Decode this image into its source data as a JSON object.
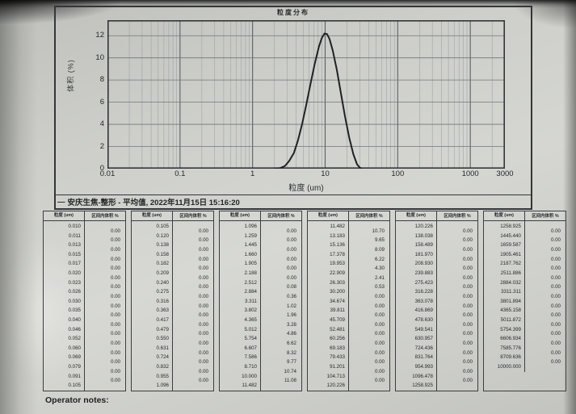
{
  "colors": {
    "page": "#d5d6d1",
    "ink": "#25272b",
    "grid_minor": "#9aa0a6",
    "grid_major": "#5a6066",
    "curve": "#1e2125"
  },
  "chart": {
    "title": "粒度分布",
    "ylabel": "体积 (%)",
    "xlabel": "粒度 (um)",
    "y_ticks": [
      0,
      2,
      4,
      6,
      8,
      10,
      12
    ],
    "x_ticks": [
      "0.01",
      "0.1",
      "1",
      "10",
      "100",
      "1000",
      "3000"
    ]
  },
  "caption": {
    "legend_dash": "—",
    "text": "安庆生焦-整形 - 平均值, 2022年11月15日 15:16:20"
  },
  "chart_data": {
    "type": "line",
    "title": "粒度分布",
    "xlabel": "粒度 (um)",
    "ylabel": "体积 (%)",
    "x_scale": "log",
    "xlim": [
      0.01,
      3000
    ],
    "ylim": [
      0,
      13.4
    ],
    "grid": true,
    "series": [
      {
        "name": "安庆生焦-整形 - 平均值",
        "x": [
          2.0,
          2.4,
          2.8,
          3.2,
          3.7,
          4.2,
          4.8,
          5.5,
          6.3,
          7.2,
          8.2,
          9.0,
          9.8,
          10.6,
          11.5,
          12.8,
          14.5,
          16.5,
          18.8,
          21.5,
          24.5,
          27.5,
          30.0,
          32.0
        ],
        "y": [
          0,
          0.05,
          0.25,
          0.7,
          1.4,
          2.5,
          4.0,
          5.8,
          7.7,
          9.5,
          11.0,
          11.8,
          12.2,
          12.15,
          11.7,
          10.6,
          8.9,
          6.8,
          4.7,
          2.8,
          1.3,
          0.4,
          0.1,
          0
        ]
      }
    ]
  },
  "tables": {
    "header_size": "粒度 (um)",
    "header_vol": "区间内体积 %",
    "groups": [
      {
        "sizes": [
          "0.010",
          "0.011",
          "0.013",
          "0.015",
          "0.017",
          "0.020",
          "0.023",
          "0.026",
          "0.030",
          "0.035",
          "0.040",
          "0.046",
          "0.052",
          "0.060",
          "0.069",
          "0.079",
          "0.091",
          "0.105"
        ],
        "values": [
          "0.00",
          "0.00",
          "0.00",
          "0.00",
          "0.00",
          "0.00",
          "0.00",
          "0.00",
          "0.00",
          "0.00",
          "0.00",
          "0.00",
          "0.00",
          "0.00",
          "0.00",
          "0.00",
          "0.00"
        ]
      },
      {
        "sizes": [
          "0.105",
          "0.120",
          "0.138",
          "0.158",
          "0.182",
          "0.209",
          "0.240",
          "0.275",
          "0.316",
          "0.363",
          "0.417",
          "0.479",
          "0.550",
          "0.631",
          "0.724",
          "0.832",
          "0.955",
          "1.096"
        ],
        "values": [
          "0.00",
          "0.00",
          "0.00",
          "0.00",
          "0.00",
          "0.00",
          "0.00",
          "0.00",
          "0.00",
          "0.00",
          "0.00",
          "0.00",
          "0.00",
          "0.00",
          "0.00",
          "0.00",
          "0.00"
        ]
      },
      {
        "sizes": [
          "1.096",
          "1.259",
          "1.445",
          "1.660",
          "1.905",
          "2.188",
          "2.512",
          "2.884",
          "3.311",
          "3.802",
          "4.365",
          "5.012",
          "5.754",
          "6.607",
          "7.586",
          "8.710",
          "10.000",
          "11.482"
        ],
        "values": [
          "0.00",
          "0.00",
          "0.00",
          "0.00",
          "0.00",
          "0.00",
          "0.08",
          "0.36",
          "1.02",
          "1.96",
          "3.28",
          "4.86",
          "6.62",
          "8.32",
          "9.77",
          "10.74",
          "11.08"
        ]
      },
      {
        "sizes": [
          "11.482",
          "13.183",
          "15.136",
          "17.378",
          "19.953",
          "22.909",
          "26.303",
          "30.200",
          "34.674",
          "39.811",
          "45.709",
          "52.481",
          "60.256",
          "69.183",
          "79.433",
          "91.201",
          "104.713",
          "120.226"
        ],
        "values": [
          "10.70",
          "9.65",
          "8.09",
          "6.22",
          "4.30",
          "2.41",
          "0.53",
          "0.00",
          "0.00",
          "0.00",
          "0.00",
          "0.00",
          "0.00",
          "0.00",
          "0.00",
          "0.00",
          "0.00"
        ]
      },
      {
        "sizes": [
          "120.226",
          "138.038",
          "158.489",
          "181.970",
          "208.930",
          "239.883",
          "275.423",
          "316.228",
          "363.078",
          "416.869",
          "478.630",
          "549.541",
          "630.957",
          "724.436",
          "831.764",
          "954.993",
          "1096.478",
          "1258.925"
        ],
        "values": [
          "0.00",
          "0.00",
          "0.00",
          "0.00",
          "0.00",
          "0.00",
          "0.00",
          "0.00",
          "0.00",
          "0.00",
          "0.00",
          "0.00",
          "0.00",
          "0.00",
          "0.00",
          "0.00",
          "0.00"
        ]
      },
      {
        "sizes": [
          "1258.925",
          "1445.440",
          "1659.587",
          "1905.461",
          "2187.762",
          "2511.886",
          "2884.032",
          "3311.311",
          "3801.894",
          "4365.158",
          "5011.872",
          "5754.399",
          "6606.934",
          "7585.776",
          "8709.636",
          "10000.000"
        ],
        "values": [
          "0.00",
          "0.00",
          "0.00",
          "0.00",
          "0.00",
          "0.00",
          "0.00",
          "0.00",
          "0.00",
          "0.00",
          "0.00",
          "0.00",
          "0.00",
          "0.00",
          "0.00"
        ]
      }
    ]
  },
  "footer": {
    "operator_notes": "Operator notes:"
  }
}
